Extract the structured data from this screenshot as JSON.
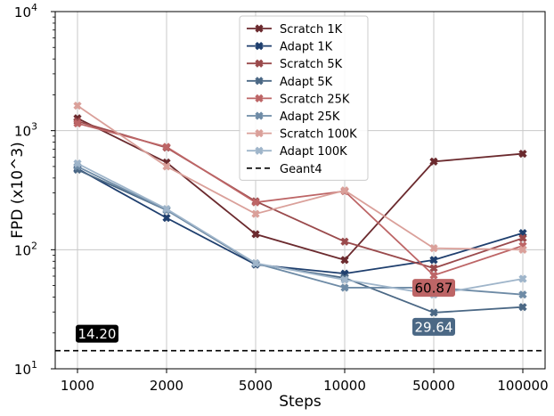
{
  "chart_data": {
    "type": "line",
    "title": "",
    "xlabel": "Steps",
    "ylabel": "FPD (x10^3)",
    "y_scale": "log",
    "ylim": [
      10,
      10000
    ],
    "grid": true,
    "legend_position": "top-center",
    "categories": [
      "1000",
      "2000",
      "5000",
      "10000",
      "50000",
      "100000"
    ],
    "y_ticks": [
      {
        "value": 10,
        "base": "10",
        "exp": "1"
      },
      {
        "value": 100,
        "base": "10",
        "exp": "2"
      },
      {
        "value": 1000,
        "base": "10",
        "exp": "3"
      },
      {
        "value": 10000,
        "base": "10",
        "exp": "4"
      }
    ],
    "series": [
      {
        "name": "Scratch 1K",
        "color": "#6b2a2e",
        "values": [
          1270,
          540,
          135,
          82,
          550,
          640
        ]
      },
      {
        "name": "Adapt 1K",
        "color": "#1f3f6e",
        "values": [
          480,
          185,
          75,
          63,
          82,
          138
        ]
      },
      {
        "name": "Scratch 5K",
        "color": "#9a4a4c",
        "values": [
          1200,
          720,
          255,
          117,
          70,
          125
        ]
      },
      {
        "name": "Adapt 5K",
        "color": "#4b6885",
        "values": [
          470,
          215,
          76,
          58,
          29.64,
          33
        ]
      },
      {
        "name": "Scratch 25K",
        "color": "#bd6566",
        "values": [
          1150,
          730,
          250,
          310,
          60.87,
          108
        ]
      },
      {
        "name": "Adapt 25K",
        "color": "#6e8ba6",
        "values": [
          500,
          215,
          77,
          48,
          48,
          42
        ]
      },
      {
        "name": "Scratch 100K",
        "color": "#daa09a",
        "values": [
          1620,
          500,
          200,
          315,
          103,
          100
        ]
      },
      {
        "name": "Adapt 100K",
        "color": "#9fb5ca",
        "values": [
          530,
          220,
          77,
          56,
          42,
          57
        ]
      }
    ],
    "reference": {
      "name": "Geant4",
      "value": 14.2,
      "style": "dashed",
      "color": "#000000"
    },
    "annotations": [
      {
        "text": "14.20",
        "value": 14.2,
        "category_index": 0,
        "bg": "#000000",
        "color": "#ffffff"
      },
      {
        "text": "60.87",
        "value": 60.87,
        "category_index": 4,
        "bg": "#bd6566",
        "color": "#000000"
      },
      {
        "text": "29.64",
        "value": 29.64,
        "category_index": 4,
        "bg": "#4b6885",
        "color": "#ffffff"
      }
    ]
  }
}
